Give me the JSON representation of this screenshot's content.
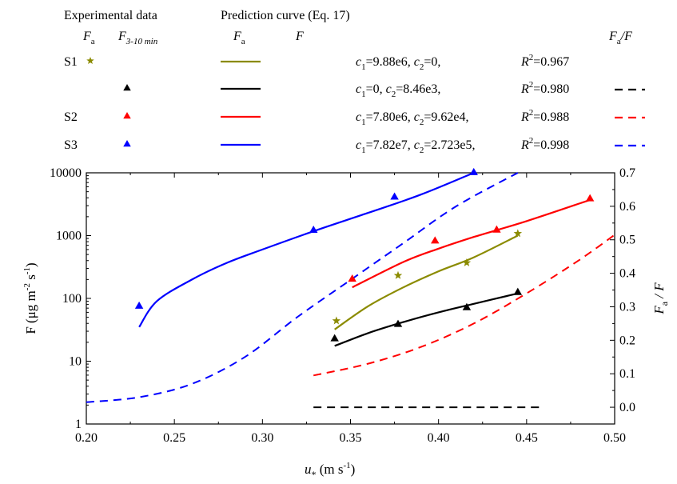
{
  "legend": {
    "exp_header": "Experimental data",
    "pred_header": "Prediction curve  (Eq. 17)",
    "col_fa": "F",
    "col_fa_sub": "a",
    "col_f310": "F",
    "col_f310_sub": "3-10 min",
    "col_pred_fa": "F",
    "col_pred_fa_sub": "a",
    "col_pred_f": "F",
    "col_ratio": "F",
    "col_ratio_sub": "a",
    "col_ratio_tail": "/F",
    "rows": [
      {
        "label": "S1",
        "marker_color": "#8b8b00",
        "marker": "star",
        "line_color": "#8b8b00",
        "c1": "=9.88e6, ",
        "c2": "=0,",
        "r2": "=0.967",
        "dash": false
      },
      {
        "label": "",
        "marker_color": "#000000",
        "marker": "triangle",
        "line_color": "#000000",
        "c1": "=0,          ",
        "c2": "=8.46e3, ",
        "r2": "=0.980",
        "dash": true
      },
      {
        "label": "S2",
        "marker_color": "#ff0000",
        "marker": "triangle",
        "line_color": "#ff0000",
        "c1": "=7.80e6, ",
        "c2": "=9.62e4, ",
        "r2": "=0.988",
        "dash": true
      },
      {
        "label": "S3",
        "marker_color": "#0000ff",
        "marker": "triangle",
        "line_color": "#0000ff",
        "c1": "=7.82e7, ",
        "c2": "=2.723e5, ",
        "r2": "=0.998",
        "dash": true
      }
    ]
  },
  "chart_data": {
    "type": "scatter",
    "xlabel": "u",
    "xlabel_sub": "*",
    "xlabel_unit": " (m s",
    "xlabel_unit_sup": "-1",
    "xlabel_unit_tail": ")",
    "ylabel_left": "F (μg m",
    "ylabel_left_sup1": "-2",
    "ylabel_left_mid": " s",
    "ylabel_left_sup2": "-1",
    "ylabel_left_tail": ")",
    "ylabel_right": "F",
    "ylabel_right_sub": "a",
    "ylabel_right_tail": " / F",
    "xlim": [
      0.2,
      0.5
    ],
    "ylim_left": [
      1,
      10000
    ],
    "ylim_right": [
      -0.05,
      0.7
    ],
    "y_scale_left": "log",
    "xticks": [
      "0.20",
      "0.25",
      "0.30",
      "0.35",
      "0.40",
      "0.45",
      "0.50"
    ],
    "xtick_values": [
      0.2,
      0.25,
      0.3,
      0.35,
      0.4,
      0.45,
      0.5
    ],
    "yticks_left": [
      "1",
      "10",
      "100",
      "1000",
      "10000"
    ],
    "ytick_left_values": [
      1,
      10,
      100,
      1000,
      10000
    ],
    "yticks_right": [
      "0.0",
      "0.1",
      "0.2",
      "0.3",
      "0.4",
      "0.5",
      "0.6",
      "0.7"
    ],
    "ytick_right_values": [
      0.0,
      0.1,
      0.2,
      0.3,
      0.4,
      0.5,
      0.6,
      0.7
    ],
    "points": [
      {
        "series": "S1 Fa",
        "marker": "star",
        "color": "#8b8b00",
        "x": [
          0.342,
          0.377,
          0.416,
          0.445
        ],
        "y": [
          44,
          232,
          370,
          1080
        ]
      },
      {
        "series": "S1 F3-10min",
        "marker": "triangle",
        "color": "#000000",
        "x": [
          0.341,
          0.377,
          0.416,
          0.445
        ],
        "y": [
          23,
          39,
          72,
          126
        ]
      },
      {
        "series": "S2 F3-10min",
        "marker": "triangle",
        "color": "#ff0000",
        "x": [
          0.351,
          0.398,
          0.433,
          0.486
        ],
        "y": [
          205,
          830,
          1240,
          3900
        ]
      },
      {
        "series": "S3 F3-10min",
        "marker": "triangle",
        "color": "#0000ff",
        "x": [
          0.23,
          0.329,
          0.375,
          0.42
        ],
        "y": [
          76,
          1230,
          4150,
          10200
        ]
      }
    ],
    "curves": [
      {
        "series": "S1 Fa curve",
        "color": "#8b8b00",
        "axis": "left",
        "x": [
          0.341,
          0.36,
          0.38,
          0.4,
          0.42,
          0.445
        ],
        "y": [
          32,
          75,
          150,
          270,
          450,
          1000
        ]
      },
      {
        "series": "S1 F curve",
        "color": "#000000",
        "axis": "left",
        "x": [
          0.341,
          0.36,
          0.38,
          0.4,
          0.42,
          0.445
        ],
        "y": [
          17.5,
          28,
          42,
          60,
          82,
          120
        ]
      },
      {
        "series": "S2 F curve",
        "color": "#ff0000",
        "axis": "left",
        "x": [
          0.351,
          0.38,
          0.4,
          0.42,
          0.45,
          0.486
        ],
        "y": [
          150,
          380,
          620,
          950,
          1700,
          3700
        ]
      },
      {
        "series": "S3 F curve",
        "color": "#0000ff",
        "axis": "left",
        "x": [
          0.23,
          0.24,
          0.26,
          0.28,
          0.3,
          0.33,
          0.36,
          0.39,
          0.42
        ],
        "y": [
          35,
          90,
          200,
          370,
          600,
          1200,
          2300,
          4500,
          10000
        ]
      }
    ],
    "ratio_curves": [
      {
        "series": "S1 Fa/F",
        "color": "#000000",
        "axis": "right",
        "dashed": true,
        "x": [
          0.329,
          0.46
        ],
        "y": [
          0.0,
          0.0
        ]
      },
      {
        "series": "S2 Fa/F",
        "color": "#ff0000",
        "axis": "right",
        "dashed": true,
        "x": [
          0.329,
          0.36,
          0.39,
          0.42,
          0.45,
          0.48,
          0.5
        ],
        "y": [
          0.095,
          0.13,
          0.18,
          0.25,
          0.34,
          0.44,
          0.515
        ]
      },
      {
        "series": "S3 Fa/F",
        "color": "#0000ff",
        "axis": "right",
        "dashed": true,
        "x": [
          0.2,
          0.23,
          0.26,
          0.29,
          0.32,
          0.35,
          0.38,
          0.41,
          0.445
        ],
        "y": [
          0.015,
          0.03,
          0.07,
          0.15,
          0.27,
          0.38,
          0.49,
          0.6,
          0.7
        ]
      }
    ]
  }
}
